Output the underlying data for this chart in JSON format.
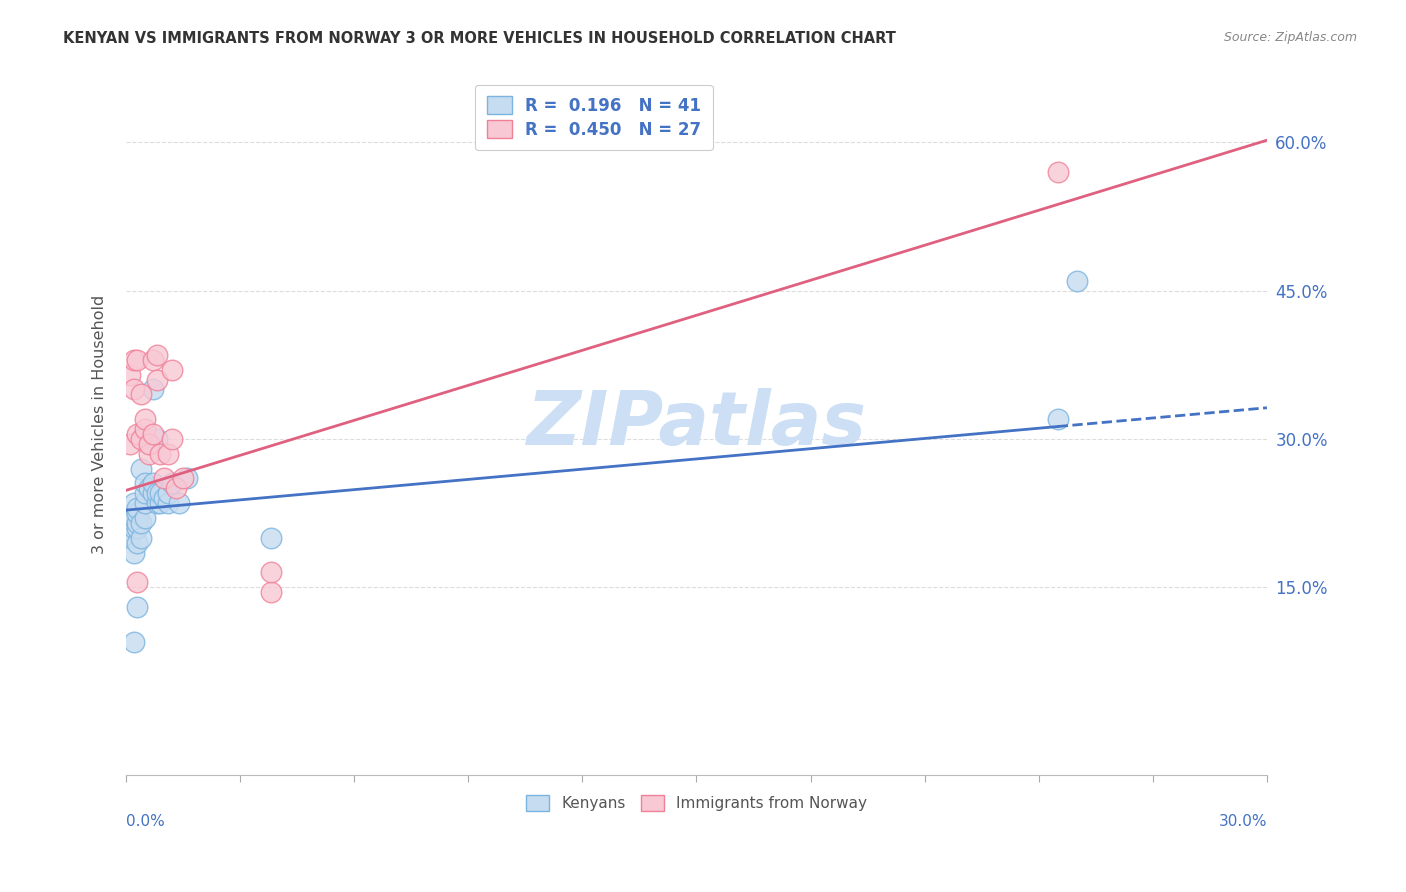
{
  "title": "KENYAN VS IMMIGRANTS FROM NORWAY 3 OR MORE VEHICLES IN HOUSEHOLD CORRELATION CHART",
  "source": "Source: ZipAtlas.com",
  "ylabel": "3 or more Vehicles in Household",
  "right_yticks": [
    "60.0%",
    "45.0%",
    "30.0%",
    "15.0%"
  ],
  "right_ytick_vals": [
    0.6,
    0.45,
    0.3,
    0.15
  ],
  "xlim": [
    0.0,
    0.3
  ],
  "ylim": [
    -0.04,
    0.67
  ],
  "blue_color": "#7ab4e0",
  "blue_fill": "#c6dcf0",
  "pink_color": "#f08098",
  "pink_fill": "#f8c8d4",
  "blue_line_color": "#4472c4",
  "pink_line_color": "#e06080",
  "blue_intercept": 0.228,
  "blue_slope": 0.345,
  "pink_intercept": 0.248,
  "pink_slope": 1.18,
  "kenyan_scatter_x": [
    0.001,
    0.001,
    0.001,
    0.002,
    0.002,
    0.002,
    0.002,
    0.003,
    0.003,
    0.003,
    0.003,
    0.003,
    0.004,
    0.004,
    0.004,
    0.004,
    0.005,
    0.005,
    0.005,
    0.005,
    0.006,
    0.006,
    0.007,
    0.007,
    0.007,
    0.008,
    0.008,
    0.008,
    0.009,
    0.009,
    0.01,
    0.011,
    0.011,
    0.012,
    0.014,
    0.016,
    0.038,
    0.245,
    0.25,
    0.003,
    0.002
  ],
  "kenyan_scatter_y": [
    0.22,
    0.215,
    0.2,
    0.185,
    0.21,
    0.22,
    0.235,
    0.195,
    0.21,
    0.215,
    0.225,
    0.23,
    0.2,
    0.215,
    0.27,
    0.3,
    0.22,
    0.235,
    0.245,
    0.255,
    0.25,
    0.295,
    0.245,
    0.255,
    0.35,
    0.235,
    0.245,
    0.3,
    0.235,
    0.245,
    0.24,
    0.235,
    0.245,
    0.255,
    0.235,
    0.26,
    0.2,
    0.32,
    0.46,
    0.13,
    0.095
  ],
  "norway_scatter_x": [
    0.001,
    0.001,
    0.002,
    0.002,
    0.003,
    0.003,
    0.003,
    0.004,
    0.004,
    0.005,
    0.005,
    0.006,
    0.006,
    0.007,
    0.007,
    0.008,
    0.008,
    0.009,
    0.01,
    0.011,
    0.012,
    0.012,
    0.013,
    0.015,
    0.038,
    0.038,
    0.245
  ],
  "norway_scatter_y": [
    0.365,
    0.295,
    0.38,
    0.35,
    0.305,
    0.38,
    0.155,
    0.3,
    0.345,
    0.31,
    0.32,
    0.285,
    0.295,
    0.305,
    0.38,
    0.36,
    0.385,
    0.285,
    0.26,
    0.285,
    0.3,
    0.37,
    0.25,
    0.26,
    0.145,
    0.165,
    0.57
  ],
  "bg_color": "#ffffff",
  "grid_color": "#dddddd",
  "title_color": "#333333",
  "watermark": "ZIPatlas",
  "watermark_color": "#ccdff5"
}
